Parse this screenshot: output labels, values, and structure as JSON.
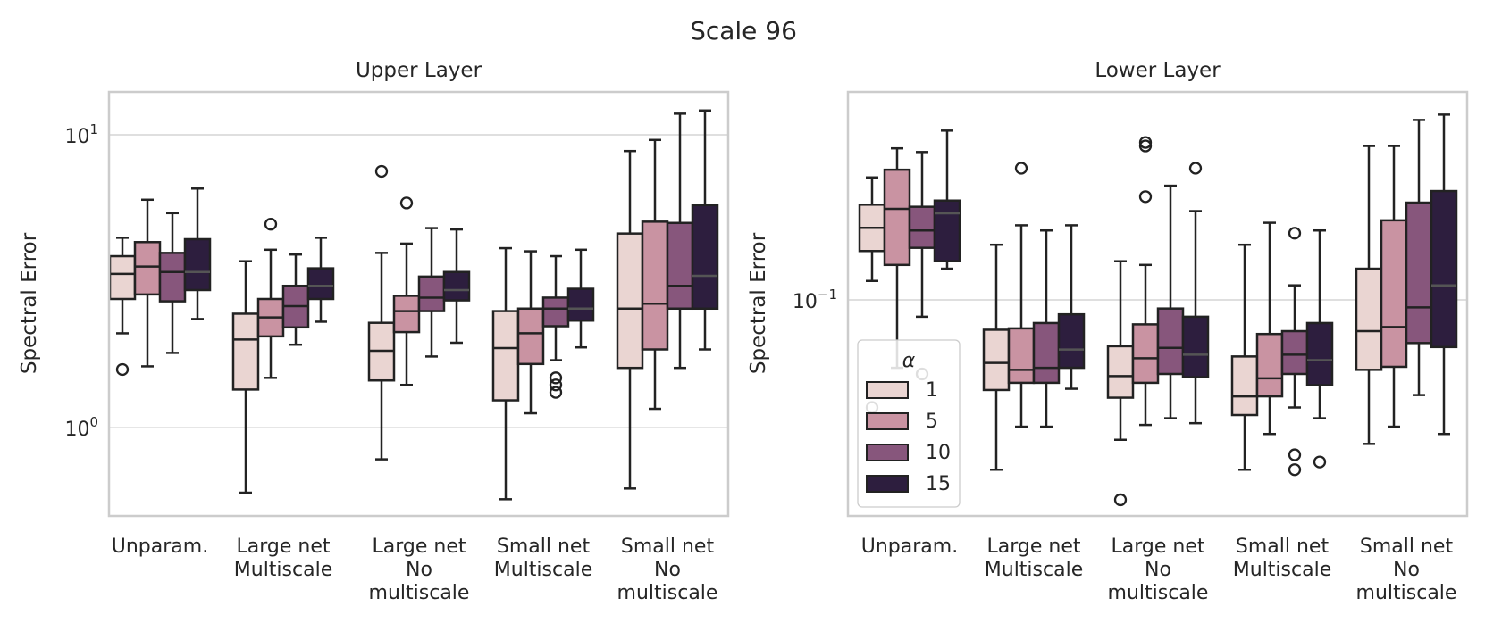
{
  "suptitle": "Scale 96",
  "palette": {
    "1": "#ead5d2",
    "5": "#c993a2",
    "10": "#87567c",
    "15": "#2d1e3e",
    "edge": "#222222",
    "grid": "#cccccc",
    "frame": "#cccccc"
  },
  "chart_data": [
    {
      "type": "boxplot",
      "title": "Upper Layer",
      "ylabel": "Spectral Error",
      "xlabel": "",
      "yscale": "log",
      "ylim": [
        0.5,
        14
      ],
      "yticks": [
        {
          "value": 1,
          "base": "10",
          "exp": "0"
        },
        {
          "value": 10,
          "base": "10",
          "exp": "1"
        }
      ],
      "grid": true,
      "hue_order": [
        "1",
        "5",
        "10",
        "15"
      ],
      "categories": [
        [
          "Unparam."
        ],
        [
          "Large net",
          "Multiscale"
        ],
        [
          "Large net",
          "No",
          "multiscale"
        ],
        [
          "Small net",
          "Multiscale"
        ],
        [
          "Small net",
          "No",
          "multiscale"
        ]
      ],
      "series": [
        {
          "name": "1",
          "boxes": [
            {
              "whislo": 2.1,
              "q1": 2.75,
              "med": 3.35,
              "q3": 3.85,
              "whishi": 4.45,
              "fliers": [
                1.58
              ]
            },
            {
              "whislo": 0.6,
              "q1": 1.35,
              "med": 2.0,
              "q3": 2.45,
              "whishi": 3.7,
              "fliers": []
            },
            {
              "whislo": 0.78,
              "q1": 1.45,
              "med": 1.83,
              "q3": 2.28,
              "whishi": 3.95,
              "fliers": [
                7.5
              ]
            },
            {
              "whislo": 0.57,
              "q1": 1.24,
              "med": 1.87,
              "q3": 2.5,
              "whishi": 4.1,
              "fliers": []
            },
            {
              "whislo": 0.62,
              "q1": 1.6,
              "med": 2.55,
              "q3": 4.6,
              "whishi": 8.8,
              "fliers": []
            }
          ]
        },
        {
          "name": "5",
          "boxes": [
            {
              "whislo": 1.62,
              "q1": 2.85,
              "med": 3.55,
              "q3": 4.3,
              "whishi": 6.0,
              "fliers": []
            },
            {
              "whislo": 1.48,
              "q1": 2.05,
              "med": 2.38,
              "q3": 2.75,
              "whishi": 4.05,
              "fliers": [
                4.95
              ]
            },
            {
              "whislo": 1.4,
              "q1": 2.12,
              "med": 2.5,
              "q3": 2.82,
              "whishi": 4.25,
              "fliers": [
                5.85
              ]
            },
            {
              "whislo": 1.12,
              "q1": 1.65,
              "med": 2.1,
              "q3": 2.55,
              "whishi": 4.0,
              "fliers": []
            },
            {
              "whislo": 1.16,
              "q1": 1.85,
              "med": 2.65,
              "q3": 5.05,
              "whishi": 9.6,
              "fliers": []
            }
          ]
        },
        {
          "name": "10",
          "boxes": [
            {
              "whislo": 1.8,
              "q1": 2.7,
              "med": 3.4,
              "q3": 3.95,
              "whishi": 5.4,
              "fliers": []
            },
            {
              "whislo": 1.92,
              "q1": 2.2,
              "med": 2.6,
              "q3": 3.05,
              "whishi": 3.9,
              "fliers": []
            },
            {
              "whislo": 1.75,
              "q1": 2.5,
              "med": 2.78,
              "q3": 3.28,
              "whishi": 4.8,
              "fliers": []
            },
            {
              "whislo": 1.7,
              "q1": 2.22,
              "med": 2.55,
              "q3": 2.78,
              "whishi": 3.85,
              "fliers": [
                1.32,
                1.4,
                1.48
              ]
            },
            {
              "whislo": 1.6,
              "q1": 2.55,
              "med": 3.05,
              "q3": 5.0,
              "whishi": 11.8,
              "fliers": []
            }
          ]
        },
        {
          "name": "15",
          "boxes": [
            {
              "whislo": 2.35,
              "q1": 2.95,
              "med": 3.4,
              "q3": 4.4,
              "whishi": 6.55,
              "fliers": []
            },
            {
              "whislo": 2.3,
              "q1": 2.75,
              "med": 3.05,
              "q3": 3.5,
              "whishi": 4.45,
              "fliers": []
            },
            {
              "whislo": 1.95,
              "q1": 2.72,
              "med": 2.95,
              "q3": 3.4,
              "whishi": 4.75,
              "fliers": []
            },
            {
              "whislo": 1.88,
              "q1": 2.32,
              "med": 2.55,
              "q3": 2.98,
              "whishi": 4.05,
              "fliers": []
            },
            {
              "whislo": 1.85,
              "q1": 2.55,
              "med": 3.3,
              "q3": 5.75,
              "whishi": 12.1,
              "fliers": []
            }
          ]
        }
      ]
    },
    {
      "type": "boxplot",
      "title": "Lower Layer",
      "ylabel": "Spectral Error",
      "xlabel": "",
      "yscale": "log",
      "ylim": [
        0.0125,
        0.74
      ],
      "yticks": [
        {
          "value": 0.1,
          "base": "10",
          "exp": "−1"
        }
      ],
      "grid": true,
      "legend": {
        "title": "α",
        "location": "lower left",
        "labels": [
          "1",
          "5",
          "10",
          "15"
        ]
      },
      "hue_order": [
        "1",
        "5",
        "10",
        "15"
      ],
      "categories": [
        [
          "Unparam."
        ],
        [
          "Large net",
          "Multiscale"
        ],
        [
          "Large net",
          "No",
          "multiscale"
        ],
        [
          "Small net",
          "Multiscale"
        ],
        [
          "Small net",
          "No",
          "multiscale"
        ]
      ],
      "series": [
        {
          "name": "1",
          "boxes": [
            {
              "whislo": 0.12,
              "q1": 0.16,
              "med": 0.2,
              "q3": 0.25,
              "whishi": 0.325,
              "fliers": [
                0.0355
              ]
            },
            {
              "whislo": 0.0195,
              "q1": 0.042,
              "med": 0.0545,
              "q3": 0.075,
              "whishi": 0.17,
              "fliers": []
            },
            {
              "whislo": 0.026,
              "q1": 0.039,
              "med": 0.048,
              "q3": 0.064,
              "whishi": 0.145,
              "fliers": [
                0.0146
              ]
            },
            {
              "whislo": 0.0195,
              "q1": 0.033,
              "med": 0.0395,
              "q3": 0.058,
              "whishi": 0.17,
              "fliers": []
            },
            {
              "whislo": 0.025,
              "q1": 0.051,
              "med": 0.074,
              "q3": 0.135,
              "whishi": 0.44,
              "fliers": []
            }
          ]
        },
        {
          "name": "5",
          "boxes": [
            {
              "whislo": 0.052,
              "q1": 0.14,
              "med": 0.24,
              "q3": 0.35,
              "whishi": 0.43,
              "fliers": []
            },
            {
              "whislo": 0.0295,
              "q1": 0.045,
              "med": 0.051,
              "q3": 0.076,
              "whishi": 0.205,
              "fliers": [
                0.355
              ]
            },
            {
              "whislo": 0.03,
              "q1": 0.045,
              "med": 0.057,
              "q3": 0.079,
              "whishi": 0.14,
              "fliers": [
                0.44,
                0.455,
                0.27
              ]
            },
            {
              "whislo": 0.0275,
              "q1": 0.0395,
              "med": 0.047,
              "q3": 0.072,
              "whishi": 0.21,
              "fliers": []
            },
            {
              "whislo": 0.0295,
              "q1": 0.0525,
              "med": 0.077,
              "q3": 0.215,
              "whishi": 0.44,
              "fliers": []
            }
          ]
        },
        {
          "name": "10",
          "boxes": [
            {
              "whislo": 0.085,
              "q1": 0.165,
              "med": 0.195,
              "q3": 0.245,
              "whishi": 0.415,
              "fliers": [
                0.049
              ]
            },
            {
              "whislo": 0.0295,
              "q1": 0.045,
              "med": 0.052,
              "q3": 0.08,
              "whishi": 0.195,
              "fliers": []
            },
            {
              "whislo": 0.032,
              "q1": 0.049,
              "med": 0.063,
              "q3": 0.092,
              "whishi": 0.3,
              "fliers": []
            },
            {
              "whislo": 0.0355,
              "q1": 0.049,
              "med": 0.059,
              "q3": 0.074,
              "whishi": 0.115,
              "fliers": [
                0.19,
                0.0225,
                0.0195
              ]
            },
            {
              "whislo": 0.04,
              "q1": 0.066,
              "med": 0.093,
              "q3": 0.255,
              "whishi": 0.565,
              "fliers": []
            }
          ]
        },
        {
          "name": "15",
          "boxes": [
            {
              "whislo": 0.135,
              "q1": 0.145,
              "med": 0.23,
              "q3": 0.26,
              "whishi": 0.51,
              "fliers": []
            },
            {
              "whislo": 0.0425,
              "q1": 0.052,
              "med": 0.062,
              "q3": 0.087,
              "whishi": 0.205,
              "fliers": []
            },
            {
              "whislo": 0.0305,
              "q1": 0.0475,
              "med": 0.059,
              "q3": 0.085,
              "whishi": 0.235,
              "fliers": [
                0.355
              ]
            },
            {
              "whislo": 0.032,
              "q1": 0.044,
              "med": 0.056,
              "q3": 0.08,
              "whishi": 0.195,
              "fliers": [
                0.021
              ]
            },
            {
              "whislo": 0.0275,
              "q1": 0.0635,
              "med": 0.115,
              "q3": 0.285,
              "whishi": 0.595,
              "fliers": []
            }
          ]
        }
      ]
    }
  ]
}
